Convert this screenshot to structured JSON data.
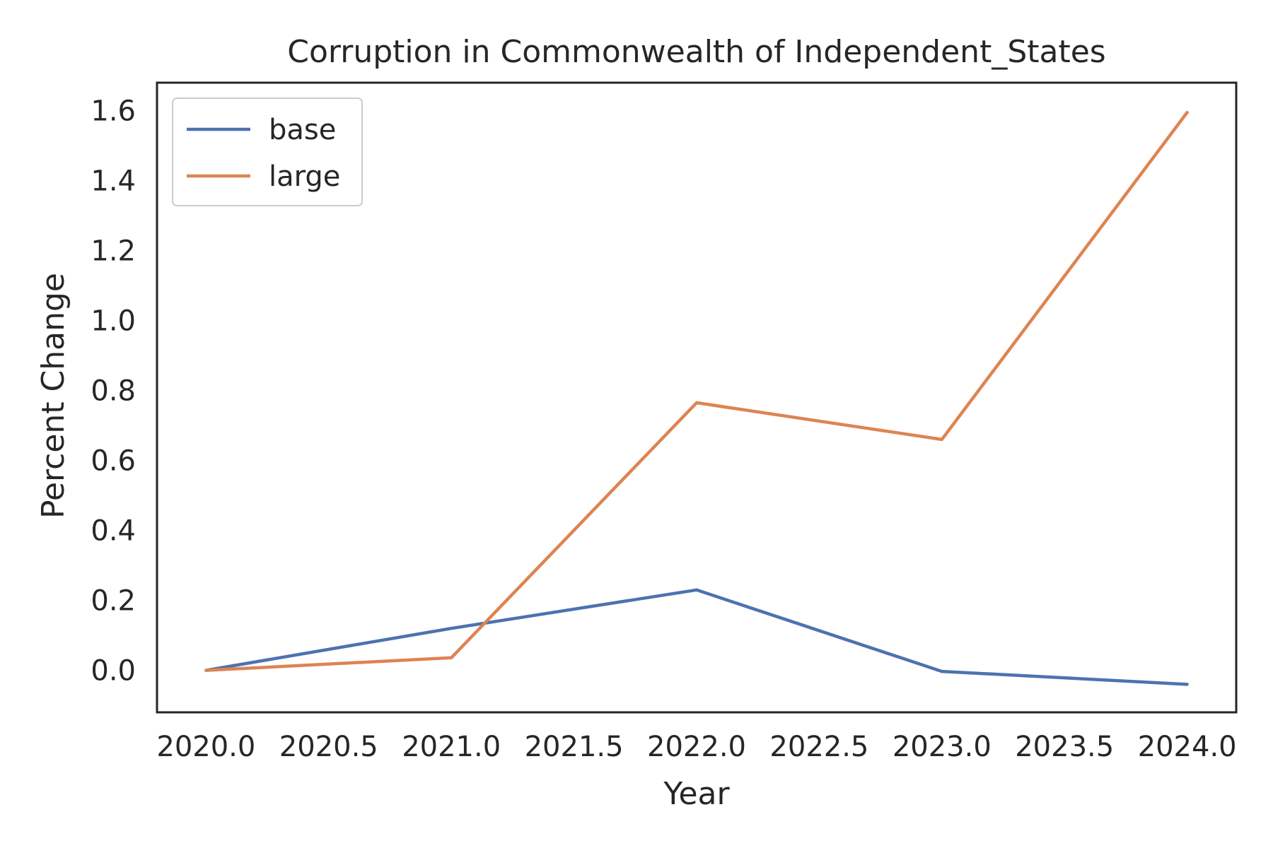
{
  "chart_data": {
    "type": "line",
    "title": "Corruption in Commonwealth of Independent_States",
    "xlabel": "Year",
    "ylabel": "Percent Change",
    "xlim": [
      2019.8,
      2024.2
    ],
    "ylim": [
      -0.12,
      1.68
    ],
    "x_ticks": [
      2020.0,
      2020.5,
      2021.0,
      2021.5,
      2022.0,
      2022.5,
      2023.0,
      2023.5,
      2024.0
    ],
    "x_tick_labels": [
      "2020.0",
      "2020.5",
      "2021.0",
      "2021.5",
      "2022.0",
      "2022.5",
      "2023.0",
      "2023.5",
      "2024.0"
    ],
    "y_ticks": [
      0.0,
      0.2,
      0.4,
      0.6,
      0.8,
      1.0,
      1.2,
      1.4,
      1.6
    ],
    "y_tick_labels": [
      "0.0",
      "0.2",
      "0.4",
      "0.6",
      "0.8",
      "1.0",
      "1.2",
      "1.4",
      "1.6"
    ],
    "grid": false,
    "legend_position": "top-left",
    "x": [
      2020,
      2021,
      2022,
      2023,
      2024
    ],
    "series": [
      {
        "name": "base",
        "color": "#4c72b0",
        "values": [
          0.0,
          0.12,
          0.23,
          -0.003,
          -0.04
        ]
      },
      {
        "name": "large",
        "color": "#dd8452",
        "values": [
          0.0,
          0.036,
          0.765,
          0.66,
          1.595
        ]
      }
    ]
  }
}
